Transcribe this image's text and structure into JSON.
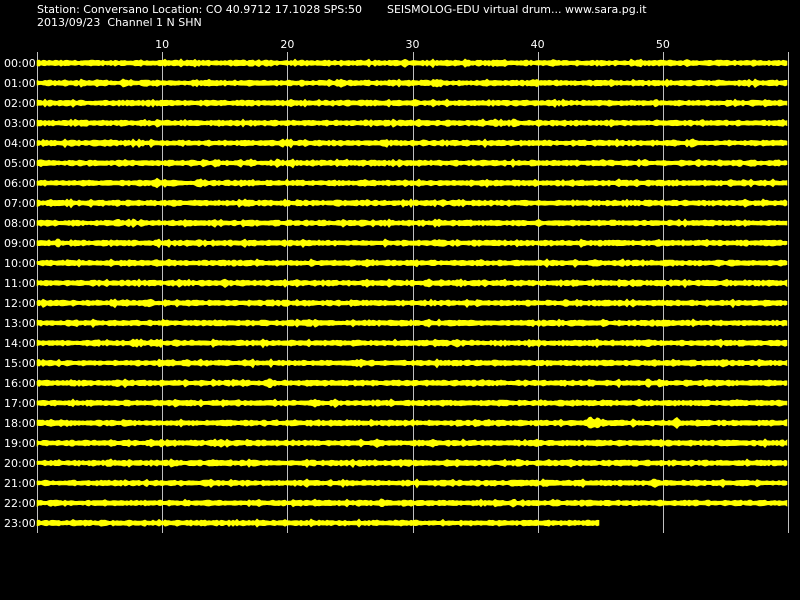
{
  "header": {
    "station_line": "Station: Conversano Location: CO 40.9712 17.1028 SPS:50",
    "title": "SEISMOLOG-EDU virtual drum... www.sara.pg.it",
    "date_line": "2013/09/23  Channel 1 N SHN"
  },
  "colors": {
    "background": "#000000",
    "trace": "#ffff00",
    "grid": "#c0c0c0",
    "text": "#ffffff"
  },
  "chart_data": {
    "type": "line",
    "title": "",
    "xlabel": "",
    "ylabel": "",
    "xlim": [
      0,
      60
    ],
    "x_ticks": [
      10,
      20,
      30,
      40,
      50
    ],
    "grid": true,
    "series": [
      {
        "hour": "00:00",
        "end_minute": 60,
        "events": []
      },
      {
        "hour": "01:00",
        "end_minute": 60,
        "events": []
      },
      {
        "hour": "02:00",
        "end_minute": 60,
        "events": []
      },
      {
        "hour": "03:00",
        "end_minute": 60,
        "events": []
      },
      {
        "hour": "04:00",
        "end_minute": 60,
        "events": []
      },
      {
        "hour": "05:00",
        "end_minute": 60,
        "events": []
      },
      {
        "hour": "06:00",
        "end_minute": 60,
        "events": [
          {
            "minute": 9.6,
            "amplitude": 5
          }
        ]
      },
      {
        "hour": "07:00",
        "end_minute": 60,
        "events": []
      },
      {
        "hour": "08:00",
        "end_minute": 60,
        "events": []
      },
      {
        "hour": "09:00",
        "end_minute": 60,
        "events": []
      },
      {
        "hour": "10:00",
        "end_minute": 60,
        "events": []
      },
      {
        "hour": "11:00",
        "end_minute": 60,
        "events": []
      },
      {
        "hour": "12:00",
        "end_minute": 60,
        "events": []
      },
      {
        "hour": "13:00",
        "end_minute": 60,
        "events": []
      },
      {
        "hour": "14:00",
        "end_minute": 60,
        "events": []
      },
      {
        "hour": "15:00",
        "end_minute": 60,
        "events": []
      },
      {
        "hour": "16:00",
        "end_minute": 60,
        "events": [
          {
            "minute": 18.6,
            "amplitude": 5
          }
        ]
      },
      {
        "hour": "17:00",
        "end_minute": 60,
        "events": []
      },
      {
        "hour": "18:00",
        "end_minute": 60,
        "events": [
          {
            "minute": 44.2,
            "amplitude": 7
          },
          {
            "minute": 44.8,
            "amplitude": 6
          },
          {
            "minute": 51.1,
            "amplitude": 6
          }
        ]
      },
      {
        "hour": "19:00",
        "end_minute": 60,
        "events": []
      },
      {
        "hour": "20:00",
        "end_minute": 60,
        "events": []
      },
      {
        "hour": "21:00",
        "end_minute": 60,
        "events": []
      },
      {
        "hour": "22:00",
        "end_minute": 60,
        "events": []
      },
      {
        "hour": "23:00",
        "end_minute": 45,
        "events": []
      }
    ]
  }
}
